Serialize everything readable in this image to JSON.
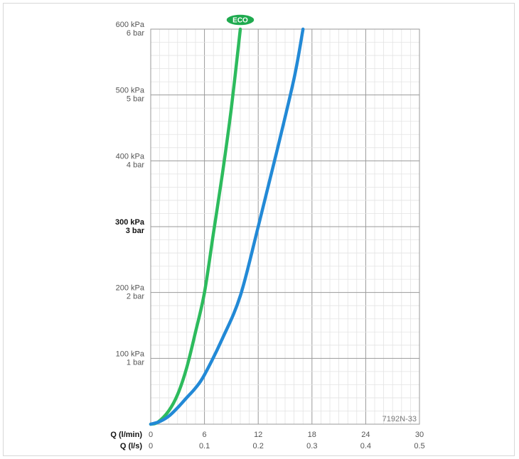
{
  "chart_data": {
    "type": "line",
    "x_unit_label": "Q (l/min)",
    "x2_unit_label": "Q (l/s)",
    "x_ticks": [
      "0",
      "6",
      "12",
      "18",
      "24",
      "30"
    ],
    "x2_ticks": [
      "0",
      "0.1",
      "0.2",
      "0.3",
      "0.4",
      "0.5"
    ],
    "xlim": [
      0,
      30
    ],
    "ylim": [
      0,
      600
    ],
    "y_ticks": [
      {
        "value": 600,
        "kpa": "600 kPa",
        "bar": "6 bar"
      },
      {
        "value": 500,
        "kpa": "500 kPa",
        "bar": "5 bar"
      },
      {
        "value": 400,
        "kpa": "400 kPa",
        "bar": "4 bar"
      },
      {
        "value": 300,
        "kpa": "300 kPa",
        "bar": "3 bar",
        "bold": true
      },
      {
        "value": 200,
        "kpa": "200 kPa",
        "bar": "2 bar"
      },
      {
        "value": 100,
        "kpa": "100 kPa",
        "bar": "1 bar"
      }
    ],
    "grid": true,
    "series": [
      {
        "color": "#2dbb5d",
        "badge": "ECO",
        "x": [
          0,
          0.8,
          2,
          3,
          4,
          5,
          6,
          7,
          8,
          9,
          10
        ],
        "y": [
          0,
          3,
          20,
          45,
          85,
          140,
          200,
          290,
          380,
          480,
          600
        ]
      },
      {
        "color": "#2289d6",
        "x": [
          0,
          1,
          2,
          3,
          4,
          5,
          6,
          8,
          10,
          12,
          14,
          16,
          17
        ],
        "y": [
          0,
          4,
          12,
          25,
          40,
          55,
          75,
          130,
          195,
          300,
          410,
          525,
          600
        ]
      }
    ],
    "code_label": "7192N-33"
  }
}
